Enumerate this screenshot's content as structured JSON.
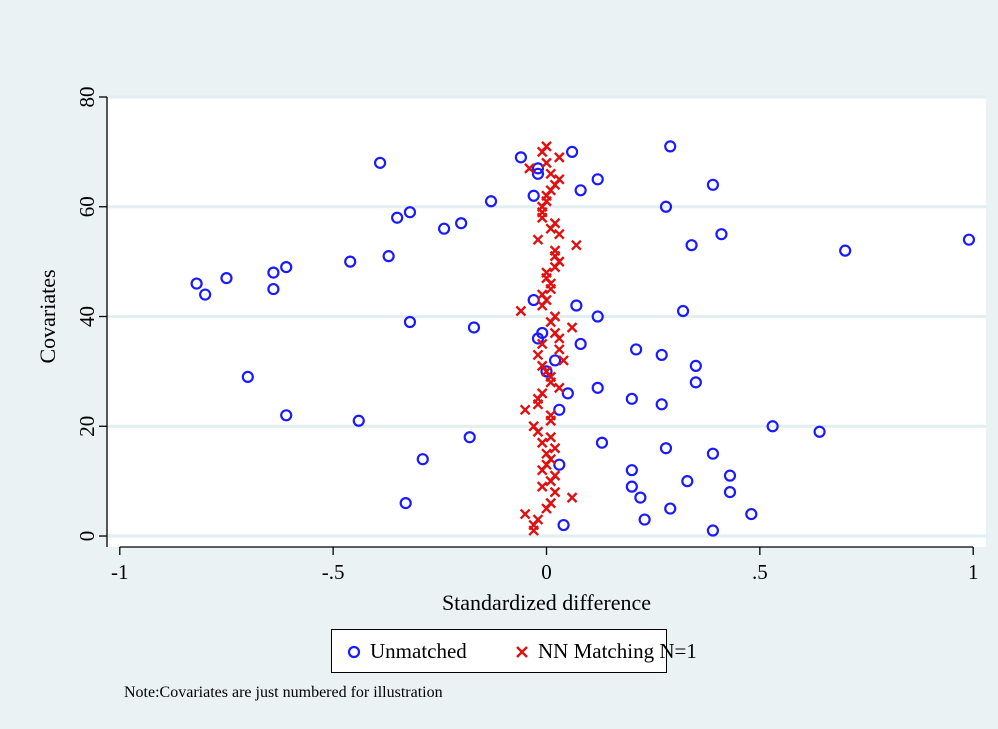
{
  "chart_data": {
    "type": "scatter",
    "title": "",
    "xlabel": "Standardized difference",
    "ylabel": "Covariates",
    "xlim": [
      -1.03,
      1.03
    ],
    "ylim": [
      -2,
      80
    ],
    "x_ticks": [
      -1,
      -0.5,
      0,
      0.5,
      1
    ],
    "x_tick_labels": [
      "-1",
      "-.5",
      "0",
      ".5",
      "1"
    ],
    "y_ticks": [
      0,
      20,
      40,
      60,
      80
    ],
    "y_tick_labels": [
      "0",
      "20",
      "40",
      "60",
      "80"
    ],
    "grid": "horizontal",
    "legend_position": "bottom",
    "colors": {
      "unmatched": "#1a1aff",
      "matched": "#e01010",
      "outer_bg": "#eaf2f3",
      "plot_bg": "#ffffff",
      "grid": "#e2eef0"
    },
    "series": [
      {
        "name": "Unmatched",
        "marker": "circle",
        "points": [
          [
            0.39,
            1
          ],
          [
            0.04,
            2
          ],
          [
            0.23,
            3
          ],
          [
            0.48,
            4
          ],
          [
            0.29,
            5
          ],
          [
            -0.33,
            6
          ],
          [
            0.22,
            7
          ],
          [
            0.43,
            8
          ],
          [
            0.2,
            9
          ],
          [
            0.33,
            10
          ],
          [
            0.43,
            11
          ],
          [
            0.2,
            12
          ],
          [
            0.03,
            13
          ],
          [
            -0.29,
            14
          ],
          [
            0.39,
            15
          ],
          [
            0.28,
            16
          ],
          [
            0.13,
            17
          ],
          [
            -0.18,
            18
          ],
          [
            0.64,
            19
          ],
          [
            0.53,
            20
          ],
          [
            -0.44,
            21
          ],
          [
            -0.61,
            22
          ],
          [
            0.03,
            23
          ],
          [
            0.27,
            24
          ],
          [
            0.2,
            25
          ],
          [
            0.05,
            26
          ],
          [
            0.12,
            27
          ],
          [
            0.35,
            28
          ],
          [
            -0.7,
            29
          ],
          [
            0.0,
            30
          ],
          [
            0.35,
            31
          ],
          [
            0.02,
            32
          ],
          [
            0.27,
            33
          ],
          [
            0.21,
            34
          ],
          [
            0.08,
            35
          ],
          [
            -0.02,
            36
          ],
          [
            -0.01,
            37
          ],
          [
            -0.17,
            38
          ],
          [
            -0.32,
            39
          ],
          [
            0.12,
            40
          ],
          [
            0.32,
            41
          ],
          [
            0.07,
            42
          ],
          [
            -0.03,
            43
          ],
          [
            -0.8,
            44
          ],
          [
            -0.64,
            45
          ],
          [
            -0.82,
            46
          ],
          [
            -0.75,
            47
          ],
          [
            -0.64,
            48
          ],
          [
            -0.61,
            49
          ],
          [
            -0.46,
            50
          ],
          [
            -0.37,
            51
          ],
          [
            0.7,
            52
          ],
          [
            0.34,
            53
          ],
          [
            0.99,
            54
          ],
          [
            0.41,
            55
          ],
          [
            -0.24,
            56
          ],
          [
            -0.2,
            57
          ],
          [
            -0.35,
            58
          ],
          [
            -0.32,
            59
          ],
          [
            0.28,
            60
          ],
          [
            -0.13,
            61
          ],
          [
            -0.03,
            62
          ],
          [
            0.08,
            63
          ],
          [
            0.39,
            64
          ],
          [
            0.12,
            65
          ],
          [
            -0.02,
            66
          ],
          [
            -0.02,
            67
          ],
          [
            -0.39,
            68
          ],
          [
            -0.06,
            69
          ],
          [
            0.06,
            70
          ],
          [
            0.29,
            71
          ]
        ]
      },
      {
        "name": "NN Matching N=1",
        "marker": "x",
        "points": [
          [
            -0.03,
            1
          ],
          [
            -0.03,
            2
          ],
          [
            -0.02,
            3
          ],
          [
            -0.05,
            4
          ],
          [
            0.0,
            5
          ],
          [
            0.01,
            6
          ],
          [
            0.06,
            7
          ],
          [
            0.02,
            8
          ],
          [
            -0.01,
            9
          ],
          [
            0.01,
            10
          ],
          [
            0.02,
            11
          ],
          [
            -0.01,
            12
          ],
          [
            0.0,
            13
          ],
          [
            0.01,
            14
          ],
          [
            0.0,
            15
          ],
          [
            0.02,
            16
          ],
          [
            -0.01,
            17
          ],
          [
            0.01,
            18
          ],
          [
            -0.02,
            19
          ],
          [
            -0.03,
            20
          ],
          [
            0.01,
            21
          ],
          [
            0.01,
            22
          ],
          [
            -0.05,
            23
          ],
          [
            -0.02,
            24
          ],
          [
            -0.02,
            25
          ],
          [
            -0.01,
            26
          ],
          [
            0.03,
            27
          ],
          [
            0.01,
            28
          ],
          [
            0.01,
            29
          ],
          [
            0.0,
            30
          ],
          [
            -0.01,
            31
          ],
          [
            0.04,
            32
          ],
          [
            -0.02,
            33
          ],
          [
            0.03,
            34
          ],
          [
            -0.01,
            35
          ],
          [
            0.03,
            36
          ],
          [
            0.02,
            37
          ],
          [
            0.06,
            38
          ],
          [
            0.01,
            39
          ],
          [
            0.02,
            40
          ],
          [
            -0.06,
            41
          ],
          [
            -0.01,
            42
          ],
          [
            0.0,
            43
          ],
          [
            -0.01,
            44
          ],
          [
            0.01,
            45
          ],
          [
            0.01,
            46
          ],
          [
            0.0,
            47
          ],
          [
            0.0,
            48
          ],
          [
            0.02,
            49
          ],
          [
            0.03,
            50
          ],
          [
            0.02,
            51
          ],
          [
            0.02,
            52
          ],
          [
            0.07,
            53
          ],
          [
            -0.02,
            54
          ],
          [
            0.03,
            55
          ],
          [
            0.01,
            56
          ],
          [
            0.02,
            57
          ],
          [
            -0.01,
            58
          ],
          [
            -0.01,
            59
          ],
          [
            -0.01,
            60
          ],
          [
            0.0,
            61
          ],
          [
            0.0,
            62
          ],
          [
            0.01,
            63
          ],
          [
            0.02,
            64
          ],
          [
            0.03,
            65
          ],
          [
            0.01,
            66
          ],
          [
            -0.04,
            67
          ],
          [
            0.0,
            68
          ],
          [
            0.03,
            69
          ],
          [
            -0.01,
            70
          ],
          [
            0.0,
            71
          ]
        ]
      }
    ],
    "note": "Note:Covariates are just numbered for illustration"
  }
}
